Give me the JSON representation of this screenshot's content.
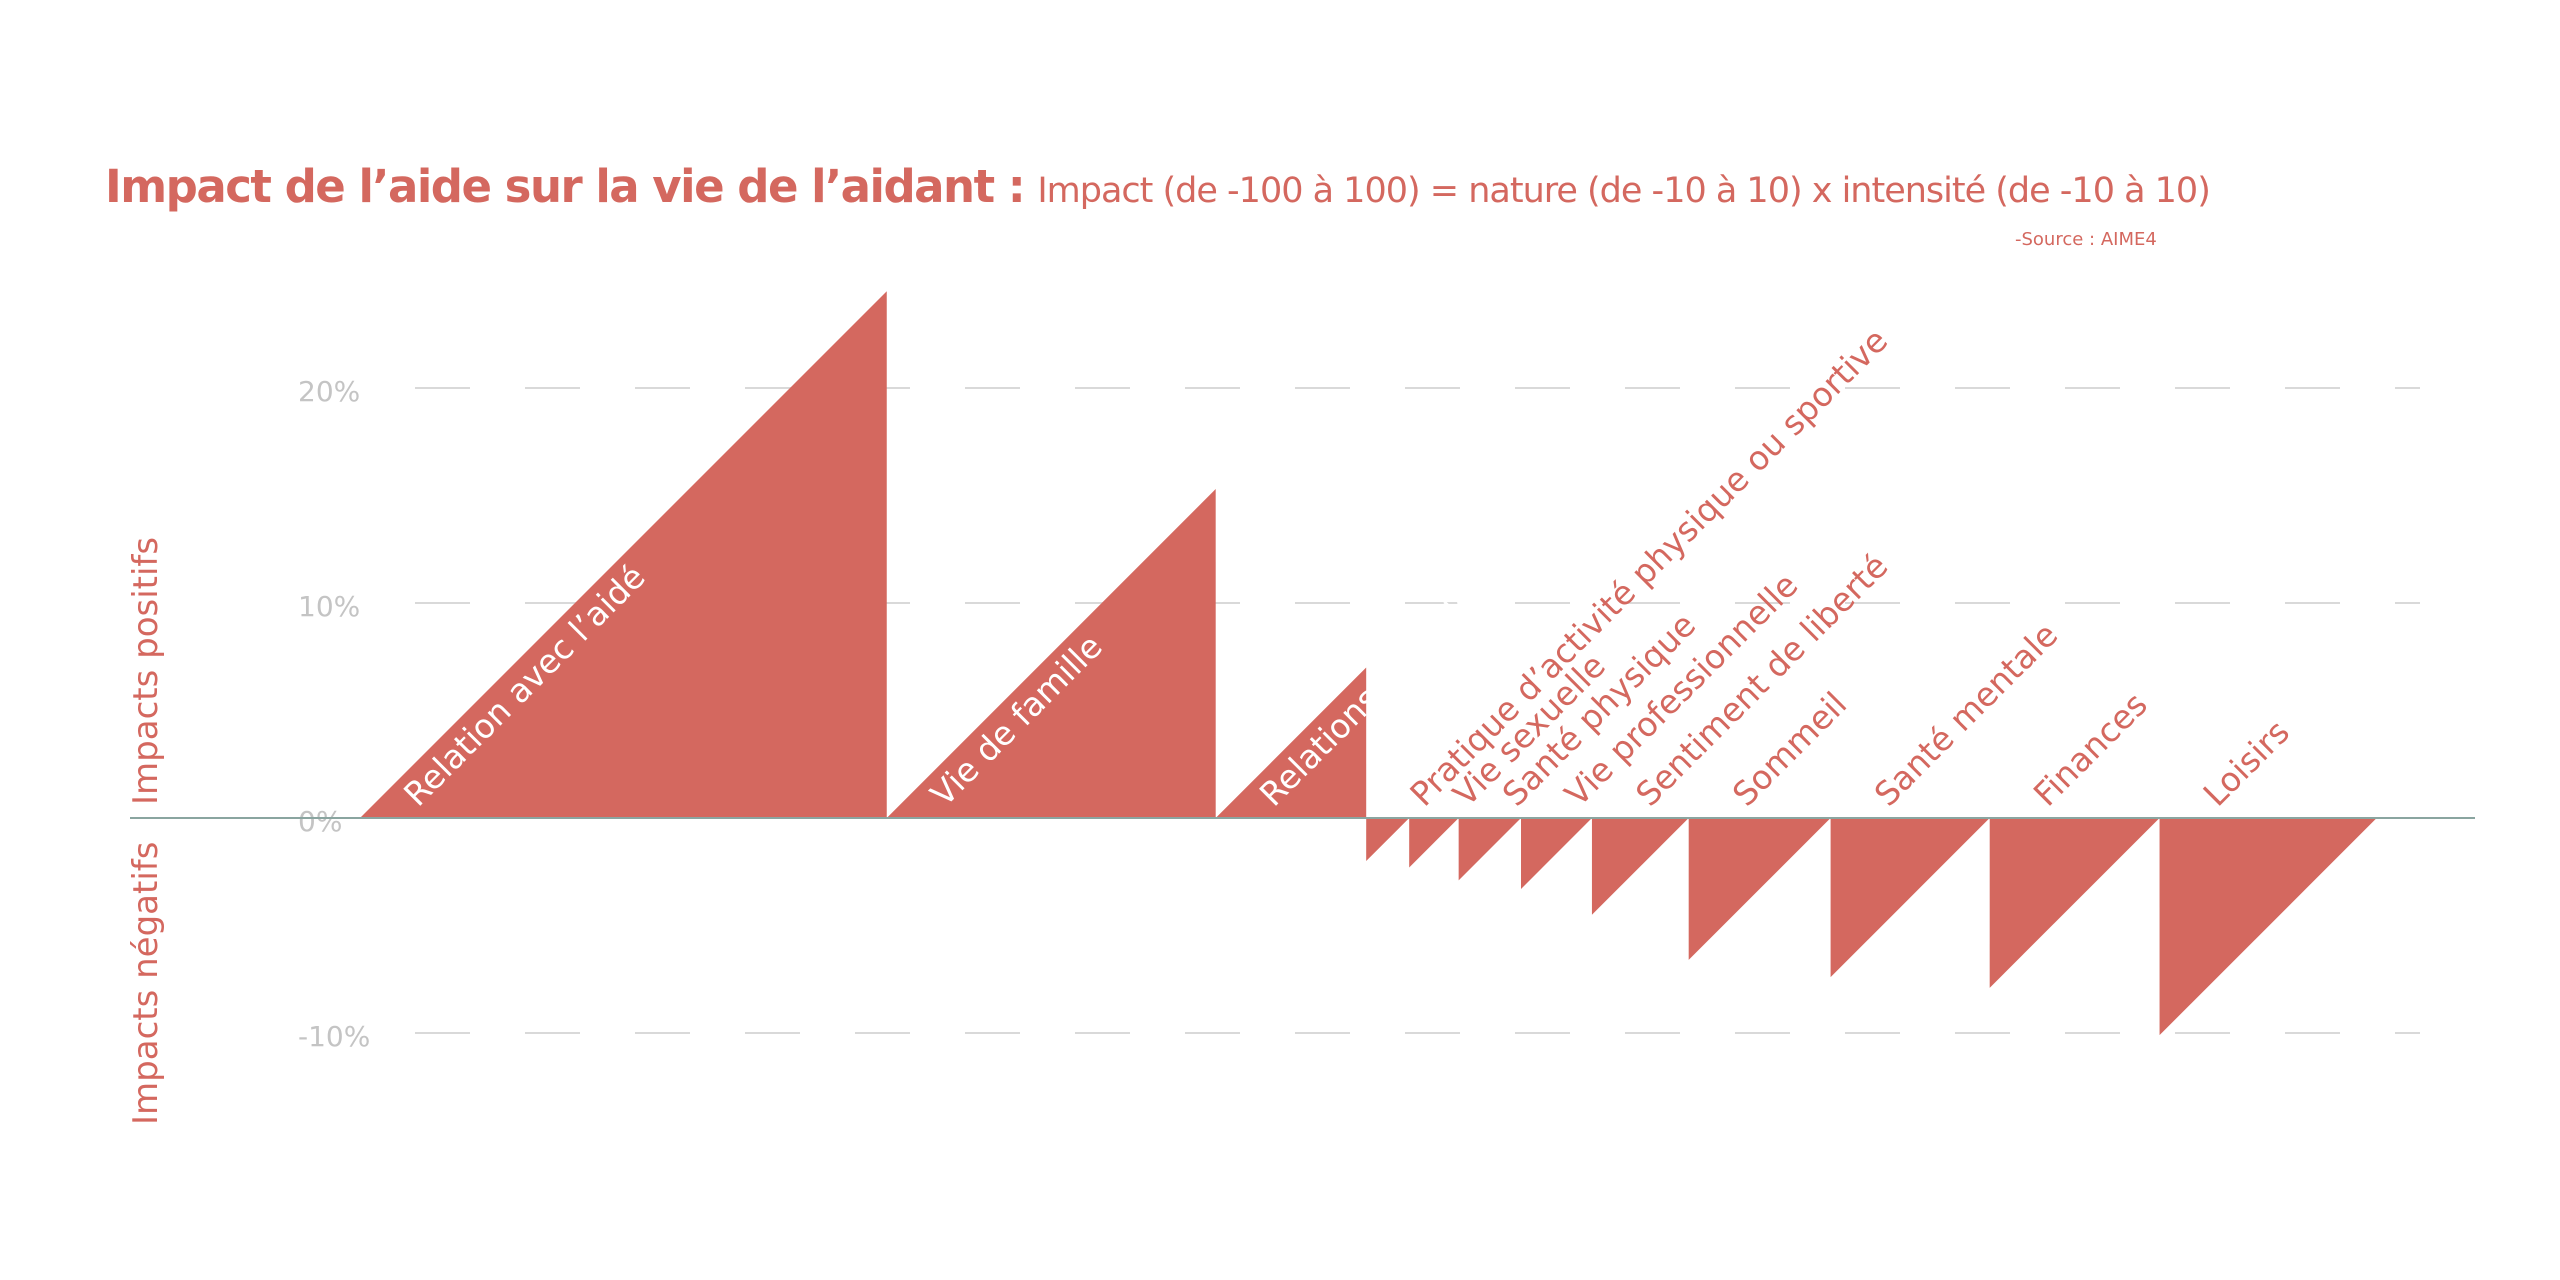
{
  "header": {
    "title": "Impact de l’aide sur la vie de l’aidant :",
    "subtitle": "Impact (de -100 à 100) = nature (de -10 à 10) x intensité (de -10 à 10)",
    "source": "-Source : AIME4"
  },
  "colors": {
    "accent": "#d4685f",
    "grid": "#d9d9d9",
    "tick": "#c4c4c4",
    "baseline": "#8aa5a0"
  },
  "chart_data": {
    "type": "area",
    "ylabel_positive": "Impacts positifs",
    "ylabel_negative": "Impacts négatifs",
    "yticks": [
      {
        "value": 20,
        "label": "20%"
      },
      {
        "value": 10,
        "label": "10%"
      },
      {
        "value": 0,
        "label": "0%"
      },
      {
        "value": -10,
        "label": "-10%"
      }
    ],
    "ylim": [
      -13,
      25
    ],
    "grid": true,
    "categories": [
      "Relation avec l’aidé",
      "Vie de famille",
      "Relations amicales",
      "Pratique d’activité physique ou sportive",
      "Vie sexuelle",
      "Santé physique",
      "Vie professionnelle",
      "Sentiment de liberté",
      "Sommeil",
      "Santé mentale",
      "Finances",
      "Loisirs"
    ],
    "values": [
      24.5,
      15.3,
      7.0,
      -2.0,
      -2.3,
      -2.9,
      -3.3,
      -4.5,
      -6.6,
      -7.4,
      -7.9,
      -10.1
    ]
  }
}
